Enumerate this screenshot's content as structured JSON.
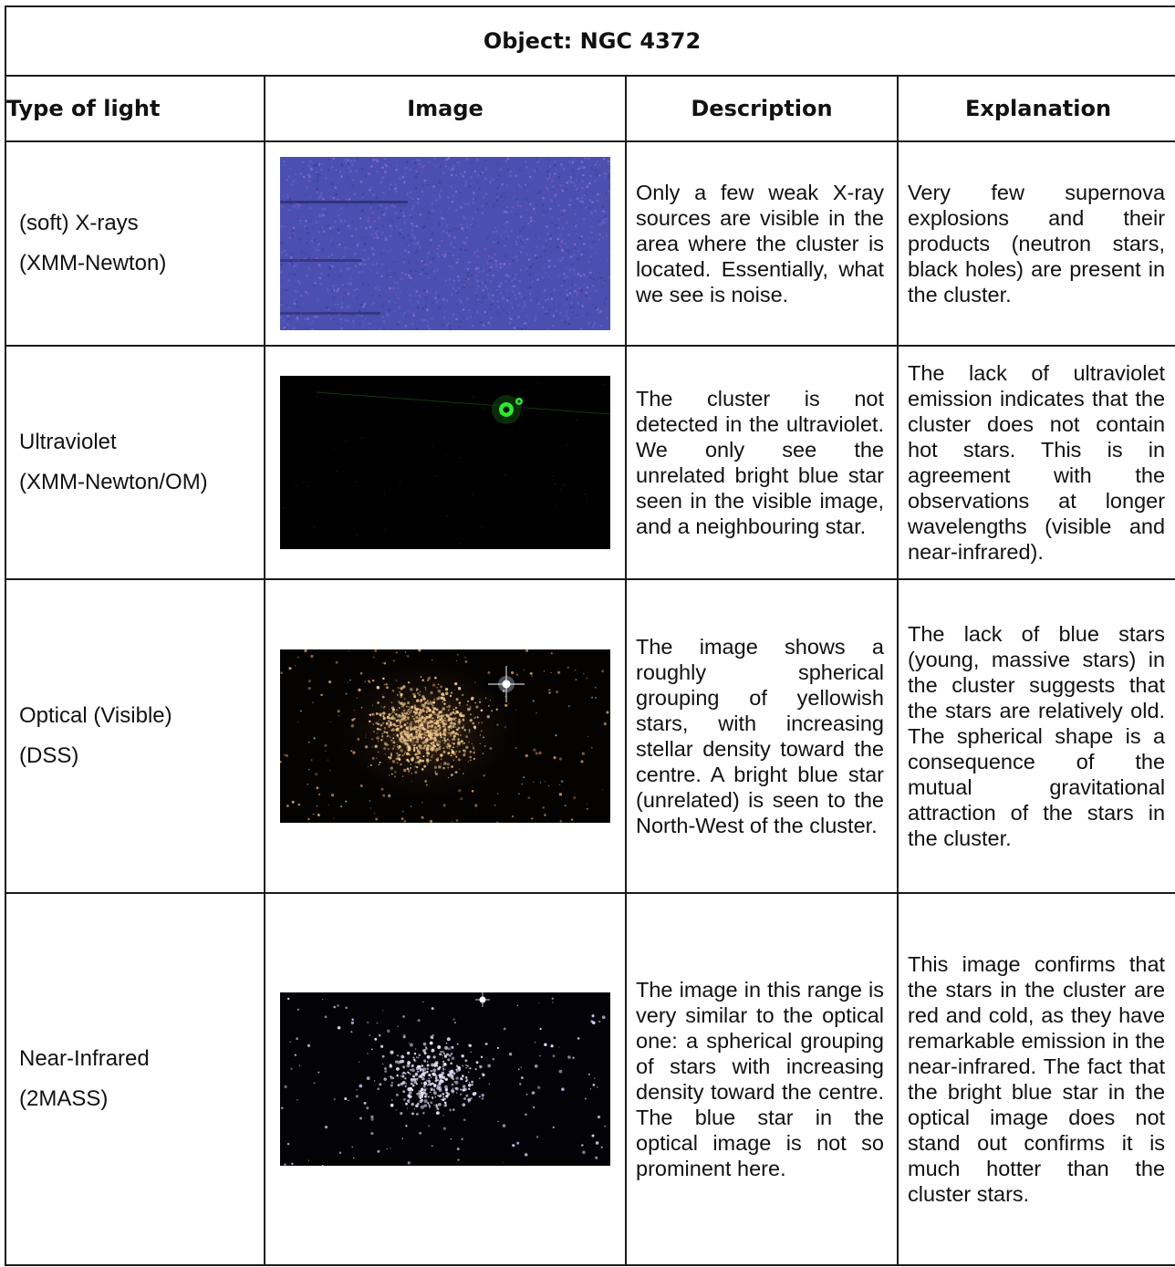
{
  "title": "Object: NGC 4372",
  "headers": {
    "type": "Type of light",
    "image": "Image",
    "description": "Description",
    "explanation": "Explanation"
  },
  "rows": [
    {
      "type_line1": "(soft) X-rays",
      "type_line2": "(XMM-Newton)",
      "image_icon": "xray-noise-image",
      "description": "Only a few weak X-ray sources are visible in the area where the cluster is located. Essentially, what we see is noise.",
      "explanation": "Very few supernova explosions and their products (neutron stars, black holes) are present in the cluster."
    },
    {
      "type_line1": "Ultraviolet",
      "type_line2": "(XMM-Newton/OM)",
      "image_icon": "ultraviolet-dark-image",
      "description": "The cluster is not detected in the ultraviolet. We only see the unrelated bright blue star seen in the visible image, and a neighbouring star.",
      "explanation": "The lack of ultraviolet emission indicates that the cluster does not contain hot stars. This is in agreement with the observations at longer wavelengths (visible and near-infrared)."
    },
    {
      "type_line1": "Optical (Visible)",
      "type_line2": "(DSS)",
      "image_icon": "optical-star-cluster-image",
      "description": "The image shows a roughly spherical grouping of yellowish stars, with increasing stellar density toward the centre. A bright blue star (unrelated) is seen to the North-West of the cluster.",
      "explanation": "The lack of blue stars (young, massive stars) in the cluster suggests that the stars are relatively old. The spherical shape is a consequence of the mutual gravitational attraction of the stars in the cluster."
    },
    {
      "type_line1": "Near-Infrared",
      "type_line2": "(2MASS)",
      "image_icon": "infrared-star-cluster-image",
      "description": "The image in this range is very similar to the optical one: a spherical grouping of stars with increasing density toward the centre. The blue star in the optical image is not so prominent here.",
      "explanation": "This image confirms that the stars in the cluster are red and cold, as they have remarkable emission in the near-infrared. The fact that the bright blue star in the optical image does not stand out confirms it is much hotter than the cluster stars."
    }
  ],
  "colors": {
    "border": "#1a1a1a",
    "xray_base": "#4b4fb0",
    "uv_base": "#000000",
    "uv_star": "#2ee82e",
    "optical_star": "#f0c88c",
    "blue_star": "#cfe0ff",
    "ir_star": "#e8e6ff"
  }
}
